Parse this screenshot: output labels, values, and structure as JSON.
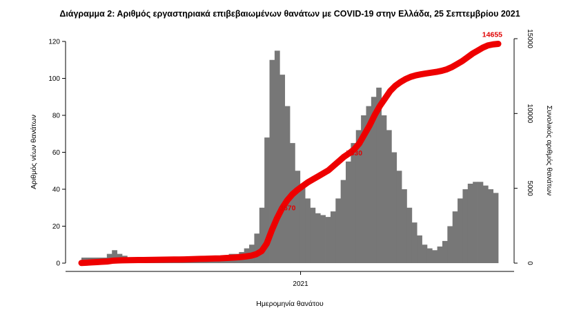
{
  "chart_data": {
    "type": "bar",
    "title": "Διάγραμμα 2: Αριθμός εργαστηριακά επιβεβαιωμένων θανάτων με COVID-19 στην Ελλάδα, 25 Σεπτεμβρίου 2021",
    "xlabel": "Ημερομηνία θανάτου",
    "ylabel": "Αριθμός νέων θανάτων",
    "ylabel_right": "Συνολικός αριθμός θανάτων",
    "x_tick_labels": [
      "2021"
    ],
    "y_ticks_left": [
      0,
      20,
      40,
      60,
      80,
      100,
      120
    ],
    "y_ticks_right": [
      0,
      5000,
      10000,
      15000
    ],
    "ylim": [
      0,
      120
    ],
    "ylim_right": [
      0,
      15000
    ],
    "x_range": [
      "2020-03-11",
      "2021-09-25"
    ],
    "bar_color": "#777777",
    "line_color": "#ee0000",
    "annotations": [
      {
        "text": "3670",
        "x": "2020-12-31",
        "y_right": 3670
      },
      {
        "text": "7330",
        "x": "2021-03-31",
        "y_right": 7330
      },
      {
        "text": "14655",
        "x": "2021-09-25",
        "y_right": 14655
      }
    ],
    "series": [
      {
        "type": "bar",
        "axis": "left",
        "values_weekly_avg": [
          3,
          3,
          3,
          3,
          3,
          5,
          7,
          5,
          4,
          3,
          2,
          2,
          2,
          1,
          1,
          1,
          1,
          1,
          1,
          1,
          1,
          1,
          1,
          2,
          2,
          2,
          2,
          3,
          4,
          5,
          5,
          6,
          8,
          10,
          16,
          30,
          68,
          110,
          115,
          102,
          85,
          65,
          50,
          42,
          35,
          30,
          27,
          26,
          25,
          28,
          35,
          45,
          55,
          65,
          72,
          80,
          85,
          90,
          95,
          80,
          72,
          60,
          50,
          40,
          30,
          22,
          15,
          10,
          8,
          7,
          9,
          12,
          20,
          28,
          35,
          40,
          43,
          44,
          44,
          42,
          40,
          38
        ]
      },
      {
        "type": "line",
        "axis": "right",
        "values_weekly_cumulative": [
          10,
          30,
          50,
          70,
          90,
          110,
          160,
          180,
          190,
          195,
          200,
          205,
          210,
          215,
          220,
          225,
          230,
          235,
          240,
          245,
          250,
          260,
          270,
          280,
          290,
          300,
          310,
          320,
          340,
          360,
          380,
          410,
          450,
          500,
          600,
          800,
          1300,
          2200,
          3000,
          3670,
          4200,
          4600,
          4900,
          5150,
          5400,
          5600,
          5800,
          6000,
          6200,
          6500,
          6800,
          7100,
          7330,
          7600,
          8000,
          8600,
          9200,
          9900,
          10500,
          11000,
          11500,
          11850,
          12100,
          12300,
          12450,
          12550,
          12620,
          12680,
          12730,
          12780,
          12850,
          12950,
          13100,
          13300,
          13500,
          13750,
          14000,
          14200,
          14400,
          14550,
          14620,
          14655
        ]
      }
    ]
  }
}
